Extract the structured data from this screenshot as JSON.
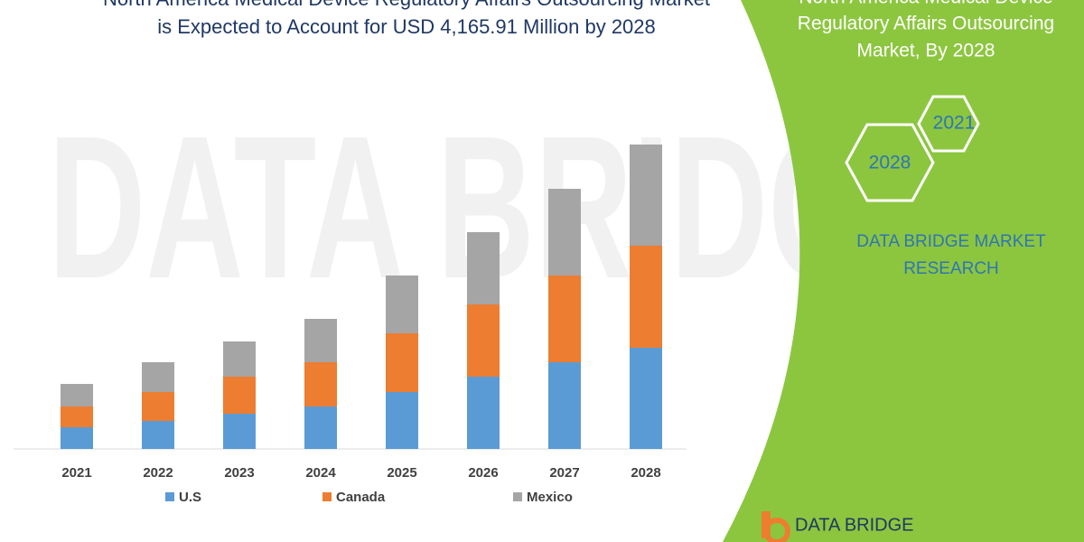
{
  "chart_data": {
    "type": "stacked_bar",
    "title": [
      "North America Medical Device Regulatory Affairs Outsourcing Market",
      "is Expected to Account for USD 4,165.91 Million by 2028"
    ],
    "categories": [
      "2021",
      "2022",
      "2023",
      "2024",
      "2025",
      "2026",
      "2027",
      "2028"
    ],
    "series": [
      {
        "name": "U.S",
        "color": "#5b9bd5",
        "values": [
          24,
          31,
          39,
          47,
          63,
          80,
          96,
          112
        ]
      },
      {
        "name": "Canada",
        "color": "#ed7d31",
        "values": [
          23,
          32,
          41,
          49,
          65,
          80,
          96,
          113
        ]
      },
      {
        "name": "Mexico",
        "color": "#a5a5a5",
        "values": [
          25,
          33,
          39,
          48,
          64,
          80,
          96,
          112
        ]
      }
    ],
    "legend": "bottom"
  },
  "sidebar": {
    "heading": [
      "North America Medical Device",
      "Regulatory Affairs Outsourcing",
      "Market, By 2028"
    ],
    "hexagons": [
      "2021",
      "2028"
    ],
    "brand": [
      "DATA BRIDGE MARKET",
      "RESEARCH"
    ],
    "logo": "DATA BRIDGE",
    "watermark": "DATA BRIDGE"
  }
}
